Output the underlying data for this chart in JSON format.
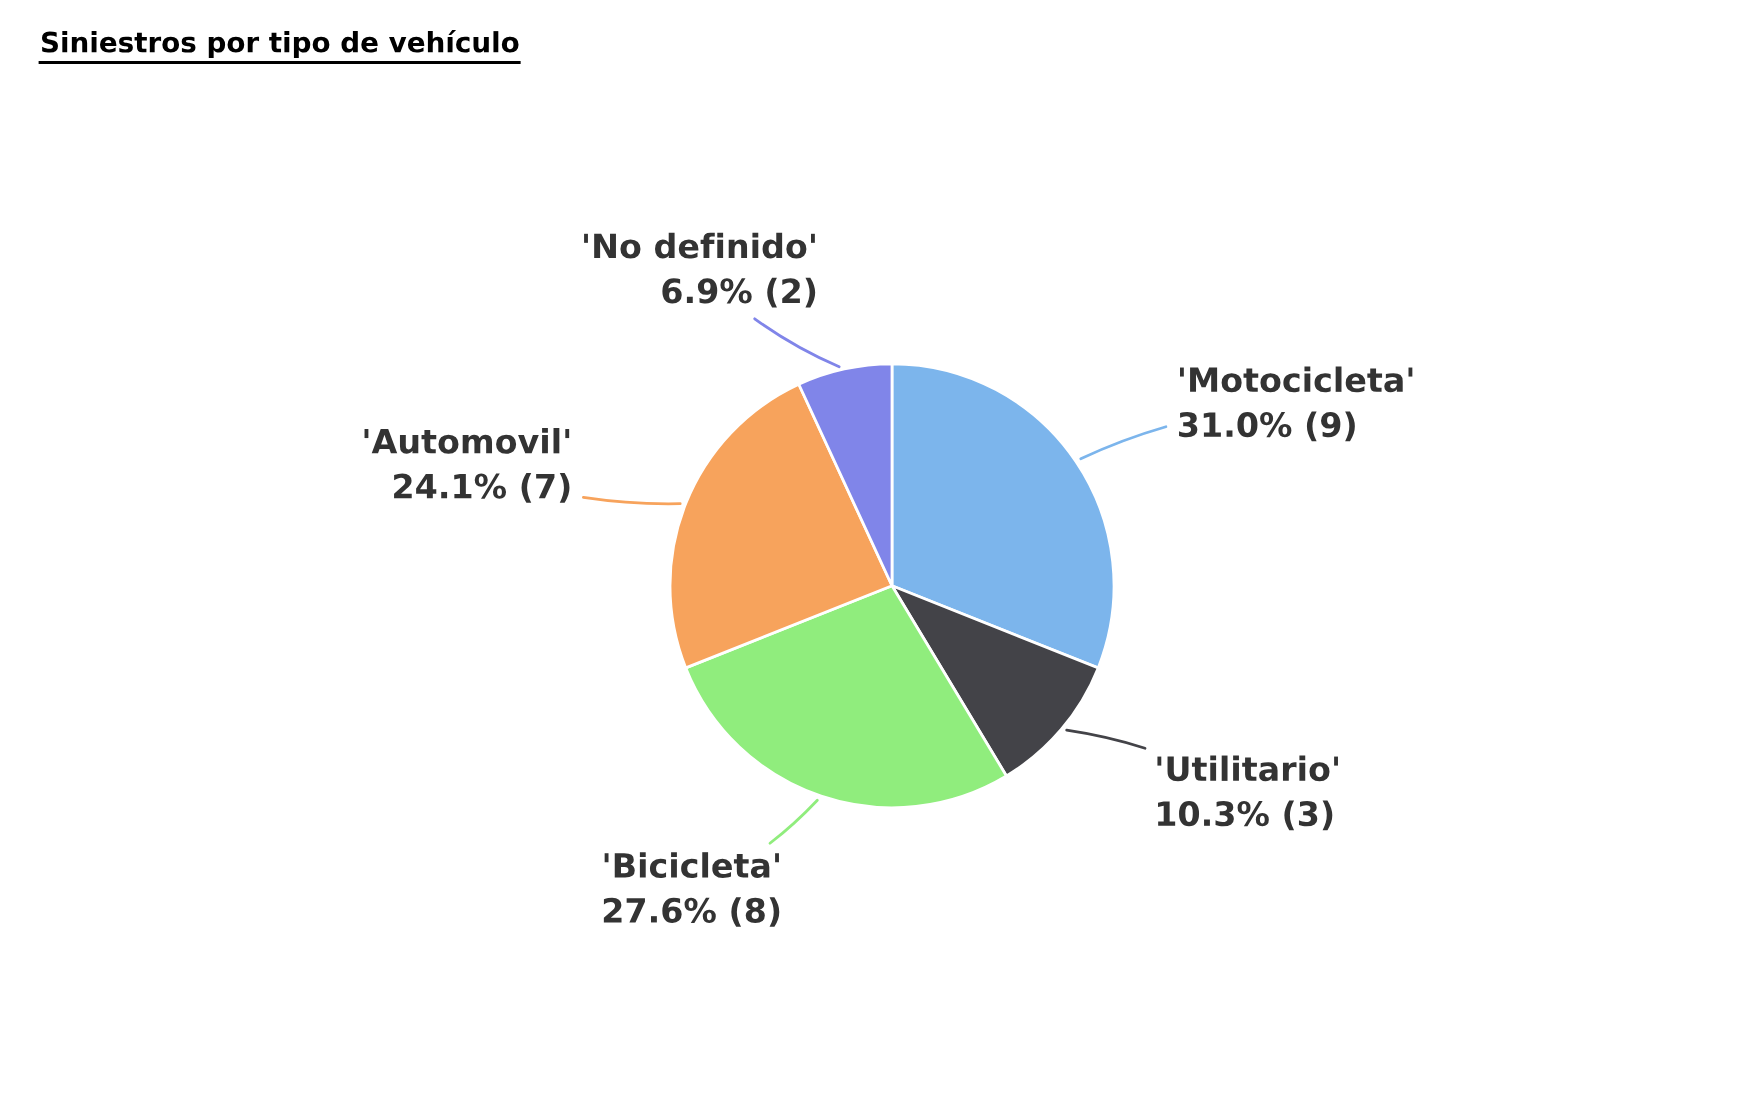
{
  "chart_data": {
    "type": "pie",
    "title": "Siniestros por tipo de vehículo",
    "categories": [
      "'Motocicleta'",
      "'Utilitario'",
      "'Bicicleta'",
      "'Automovil'",
      "'No definido'"
    ],
    "values": [
      9,
      3,
      8,
      7,
      2
    ],
    "value_labels": [
      "31.0% (9)",
      "10.3% (3)",
      "27.6% (8)",
      "24.1% (7)",
      "6.9% (2)"
    ],
    "colors": [
      "#7cb5ec",
      "#434348",
      "#90ed7d",
      "#f7a35c",
      "#8085e9"
    ],
    "legend": false
  }
}
